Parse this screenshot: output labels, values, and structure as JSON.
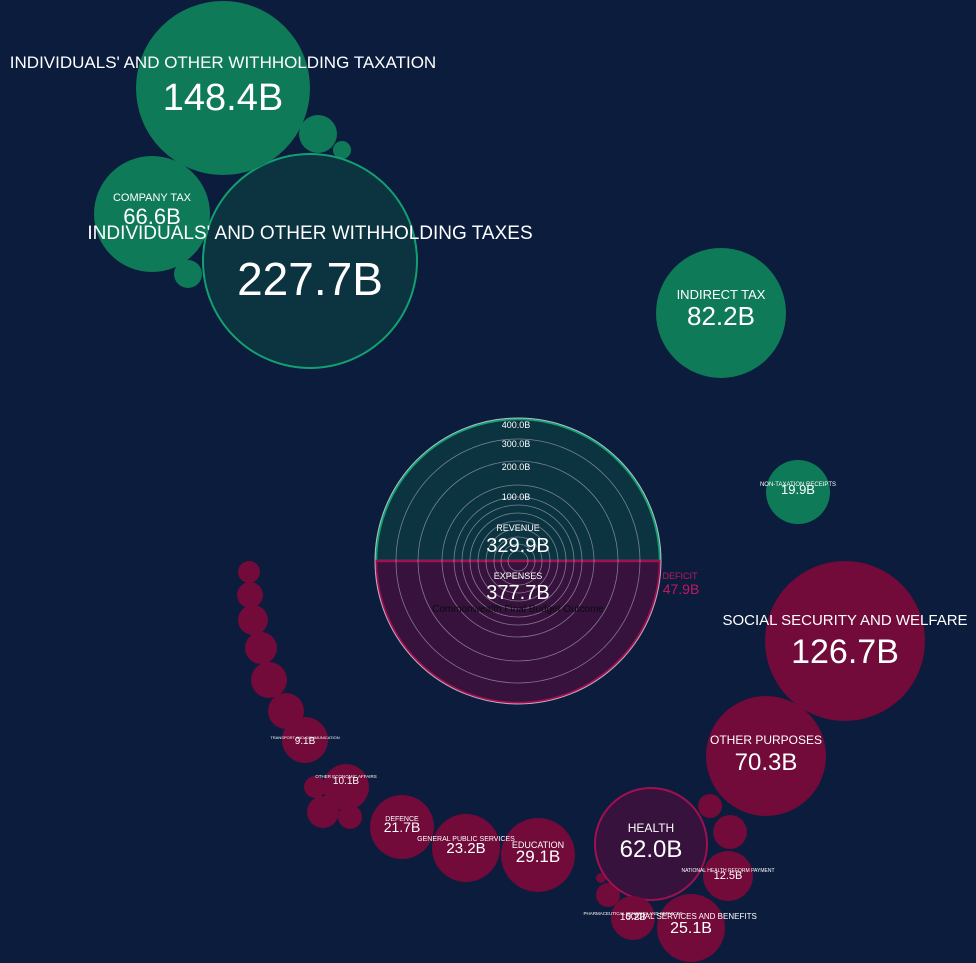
{
  "colors": {
    "background": "#0b1c3c",
    "revenue": "#0e7a58",
    "revenue_ring": "#12a070",
    "revenue_dark": "#0c3340",
    "expense": "#720a3a",
    "expense_ring": "#a01050",
    "expense_dark": "#36123c",
    "deficit": "#c21860",
    "text": "#ffffff"
  },
  "chart_data": {
    "type": "bubble",
    "title": "Commonwealth Final Budget Outcome",
    "center": {
      "revenue_label": "REVENUE",
      "revenue_value": "329.9B",
      "expenses_label": "EXPENSES",
      "expenses_value": "377.7B",
      "deficit_label": "DEFICIT",
      "deficit_value": "47.9B",
      "revenue_billion": 329.9,
      "expenses_billion": 377.7,
      "deficit_billion": 47.9,
      "scale_ticks": [
        "400.0B",
        "300.0B",
        "200.0B",
        "100.0B"
      ],
      "scale_values": [
        400,
        300,
        200,
        100
      ]
    },
    "revenue": [
      {
        "label": "INDIVIDUALS' AND OTHER WITHHOLDING TAXES",
        "value_label": "227.7B",
        "value": 227.7
      },
      {
        "label": "INDIVIDUALS' AND OTHER WITHHOLDING TAXATION",
        "value_label": "148.4B",
        "value": 148.4
      },
      {
        "label": "COMPANY TAX",
        "value_label": "66.6B",
        "value": 66.6
      },
      {
        "label": "INDIRECT TAX",
        "value_label": "82.2B",
        "value": 82.2
      },
      {
        "label": "NON-TAXATION RECEIPTS",
        "value_label": "19.9B",
        "value": 19.9
      }
    ],
    "expenses": [
      {
        "label": "SOCIAL SECURITY AND WELFARE",
        "value_label": "126.7B",
        "value": 126.7
      },
      {
        "label": "OTHER PURPOSES",
        "value_label": "70.3B",
        "value": 70.3
      },
      {
        "label": "HEALTH",
        "value_label": "62.0B",
        "value": 62.0
      },
      {
        "label": "EDUCATION",
        "value_label": "29.1B",
        "value": 29.1
      },
      {
        "label": "SOCIAL SERVICES AND BENEFITS",
        "value_label": "25.1B",
        "value": 25.1
      },
      {
        "label": "GENERAL PUBLIC SERVICES",
        "value_label": "23.2B",
        "value": 23.2
      },
      {
        "label": "DEFENCE",
        "value_label": "21.7B",
        "value": 21.7
      },
      {
        "label": "NATIONAL HEALTH REFORM PAYMENT",
        "value_label": "12.5B",
        "value": 12.5
      },
      {
        "label": "PHARMACEUTICAL BENEFITS AND SERVICES",
        "value_label": "10.2B",
        "value": 10.2
      },
      {
        "label": "OTHER ECONOMIC AFFAIRS",
        "value_label": "10.1B",
        "value": 10.1
      },
      {
        "label": "TRANSPORT AND COMMUNICATION",
        "value_label": "9.1B",
        "value": 9.1
      }
    ]
  }
}
